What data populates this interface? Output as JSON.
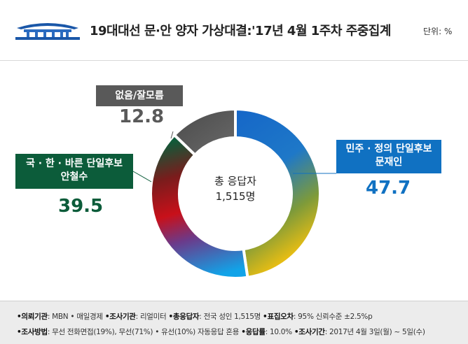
{
  "header": {
    "title": "19대대선 문·안 양자 가상대결:'17년 4월 1주차 주중집계",
    "unit": "단위: %",
    "logo_icon": "blue-house-icon"
  },
  "chart_data": {
    "type": "pie",
    "title": "19대대선 문·안 양자 가상대결:'17년 4월 1주차 주중집계",
    "unit": "%",
    "center_label": [
      "총 응답자",
      "1,515명"
    ],
    "slices": [
      {
        "label_lines": [
          "민주 · 정의 단일후보",
          "문재인"
        ],
        "value": 47.7,
        "color": "#1071c2"
      },
      {
        "label_lines": [
          "국 · 한 · 바른 단일후보",
          "안철수"
        ],
        "value": 39.5,
        "color": "#0c5c3a"
      },
      {
        "label_lines": [
          "없음/잘모름"
        ],
        "value": 12.8,
        "color": "#595959"
      }
    ],
    "value_labels": [
      "47.7",
      "39.5",
      "12.8"
    ]
  },
  "footer": {
    "line1": [
      {
        "label": "•의뢰기관",
        "text": ": MBN • 매일경제 "
      },
      {
        "label": "•조사기관",
        "text": ": 리얼미터 "
      },
      {
        "label": "•총응답자",
        "text": ": 전국 성인 1,515명 "
      },
      {
        "label": "•표집오차",
        "text": ": 95% 신뢰수준 ±2.5%p"
      }
    ],
    "line2": [
      {
        "label": "•조사방법",
        "text": ": 무선 전화면접(19%), 무선(71%) • 유선(10%) 자동응답 혼용 "
      },
      {
        "label": "•응답률",
        "text": ": 10.0% "
      },
      {
        "label": "•조사기간",
        "text": ": 2017년 4월 3일(월) ~ 5일(수)"
      }
    ]
  }
}
